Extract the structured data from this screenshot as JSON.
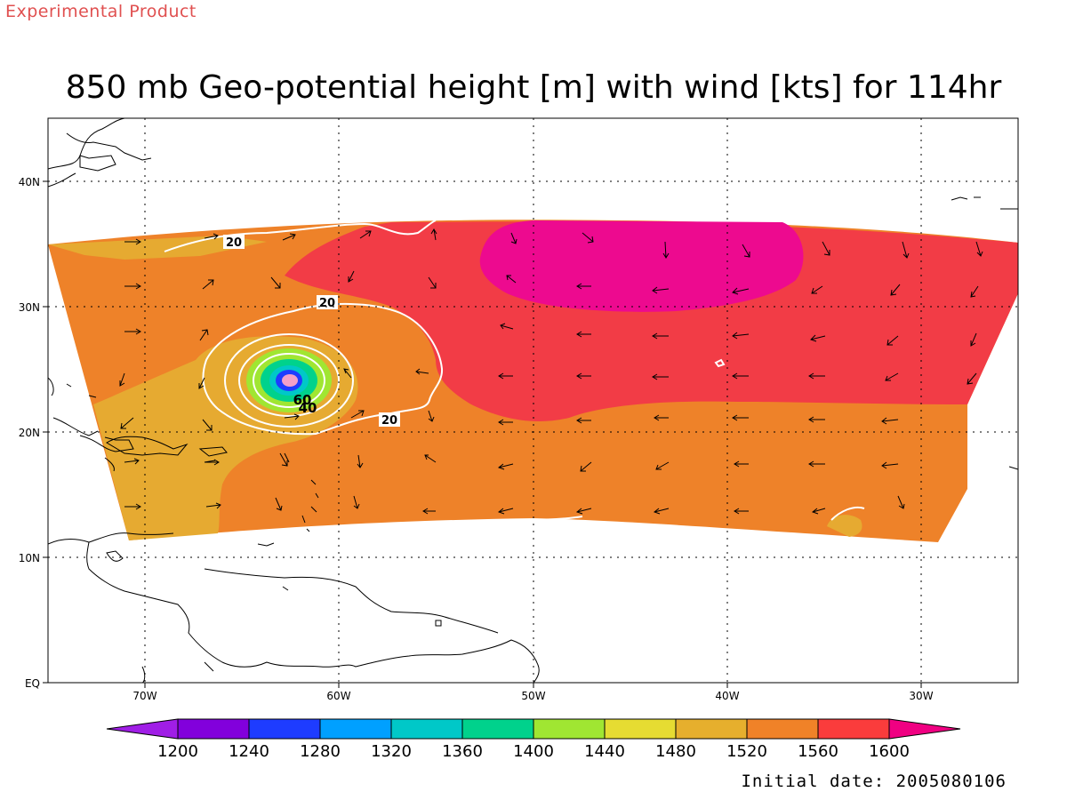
{
  "header": {
    "experimental_label": "Experimental Product",
    "title": "850 mb Geo-potential height [m] with wind [kts] for 114hr"
  },
  "footer": {
    "initial_date": "Initial date: 2005080106"
  },
  "map": {
    "lat_labels": [
      "40N",
      "30N",
      "20N",
      "10N",
      "EQ"
    ],
    "lon_labels": [
      "70W",
      "60W",
      "50W",
      "40W",
      "30W"
    ],
    "contour_labels": [
      "20",
      "20",
      "20",
      "60",
      "40"
    ],
    "fill_colors": {
      "1520-1560": "#e6aa31",
      "1560-1600": "#ee8229",
      "1600-plus": "#f23c46",
      "above-1600": "#ed0a8f",
      "contour": "#ffffff"
    }
  },
  "colorbar": {
    "ticks": [
      "1200",
      "1240",
      "1280",
      "1320",
      "1360",
      "1400",
      "1440",
      "1480",
      "1520",
      "1560",
      "1600"
    ],
    "colors": [
      "#a01ee6",
      "#8200dc",
      "#1e3cff",
      "#00a0ff",
      "#00c8c8",
      "#00d28c",
      "#a0e632",
      "#e6dc32",
      "#e6af2d",
      "#f08228",
      "#fa3c3c",
      "#f00082"
    ]
  }
}
